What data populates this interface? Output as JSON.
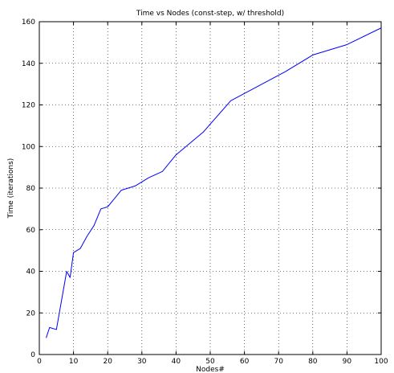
{
  "chart_data": {
    "type": "line",
    "title": "Time vs Nodes (const-step, w/ threshold)",
    "xlabel": "Nodes#",
    "ylabel": "Time (iterations)",
    "xlim": [
      0,
      100
    ],
    "ylim": [
      0,
      160
    ],
    "xticks": [
      0,
      10,
      20,
      30,
      40,
      50,
      60,
      70,
      80,
      90,
      100
    ],
    "yticks": [
      0,
      20,
      40,
      60,
      80,
      100,
      120,
      140,
      160
    ],
    "grid": true,
    "legend": "none",
    "series": [
      {
        "color": "#0000ff",
        "x": [
          2,
          3,
          5,
          8,
          9,
          10,
          12,
          14,
          16,
          18,
          20,
          22,
          24,
          28,
          32,
          36,
          40,
          48,
          56,
          64,
          72,
          80,
          90,
          100
        ],
        "y": [
          8,
          13,
          12,
          40,
          37,
          49,
          51,
          57,
          62,
          70,
          71,
          75,
          79,
          81,
          85,
          88,
          96,
          107,
          122,
          129,
          136,
          144,
          149,
          157
        ]
      }
    ]
  }
}
